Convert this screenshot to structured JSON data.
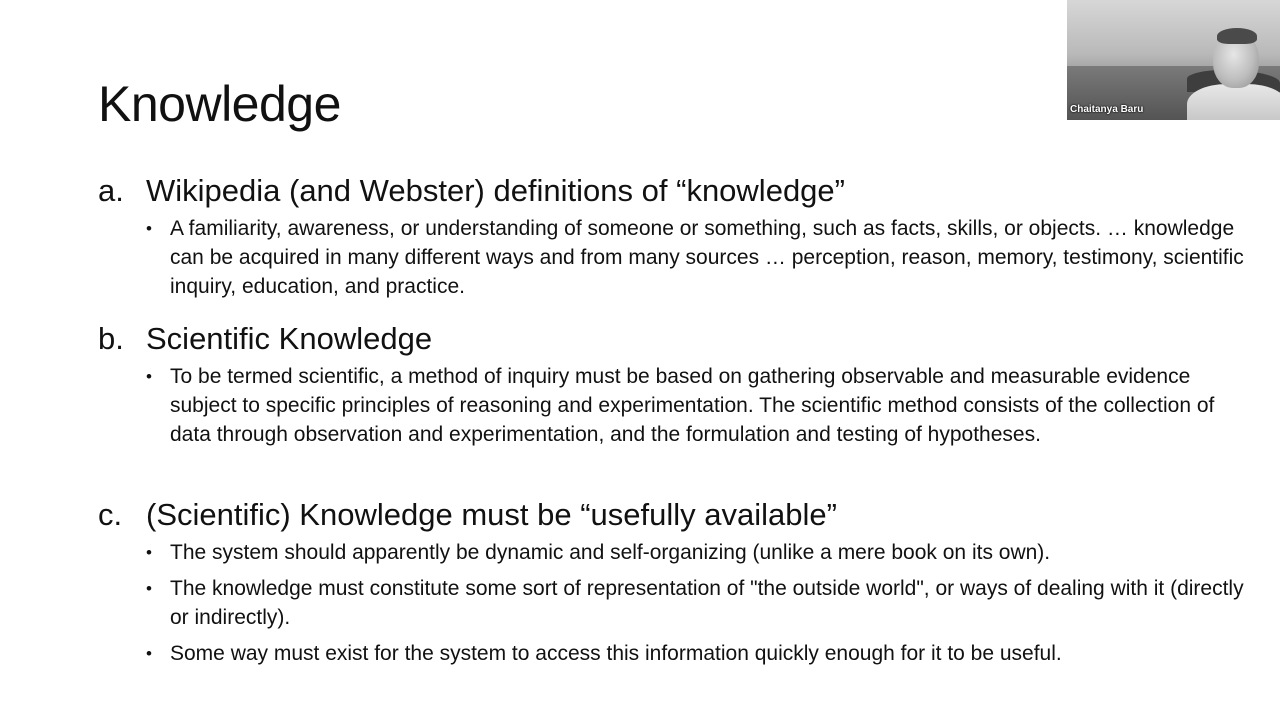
{
  "slide": {
    "title": "Knowledge",
    "sections": [
      {
        "marker": "a.",
        "heading": "Wikipedia (and Webster) definitions of “knowledge”",
        "bullets": [
          "A familiarity, awareness, or understanding of someone or something, such as facts, skills, or objects. … knowledge can be acquired in many different ways and from many sources … perception, reason, memory, testimony, scientific inquiry, education, and practice."
        ]
      },
      {
        "marker": "b.",
        "heading": "Scientific Knowledge",
        "bullets": [
          "To be termed scientific, a method of inquiry must be based on gathering observable and measurable evidence subject to specific principles of reasoning and experimentation. The scientific method consists of the collection of data through observation and experimentation, and the formulation and testing of hypotheses."
        ]
      },
      {
        "marker": "c.",
        "heading": "(Scientific) Knowledge must be “usefully available”",
        "bullets": [
          "The system should apparently be dynamic and self-organizing (unlike a mere book on its own).",
          "The knowledge must constitute some sort of representation of \"the outside world\", or ways of dealing with it (directly or indirectly).",
          "Some way must exist for the system to access this information quickly enough for it to be useful."
        ]
      }
    ],
    "bullet_glyph": "•"
  },
  "video": {
    "participant_name": "Chaitanya Baru"
  }
}
